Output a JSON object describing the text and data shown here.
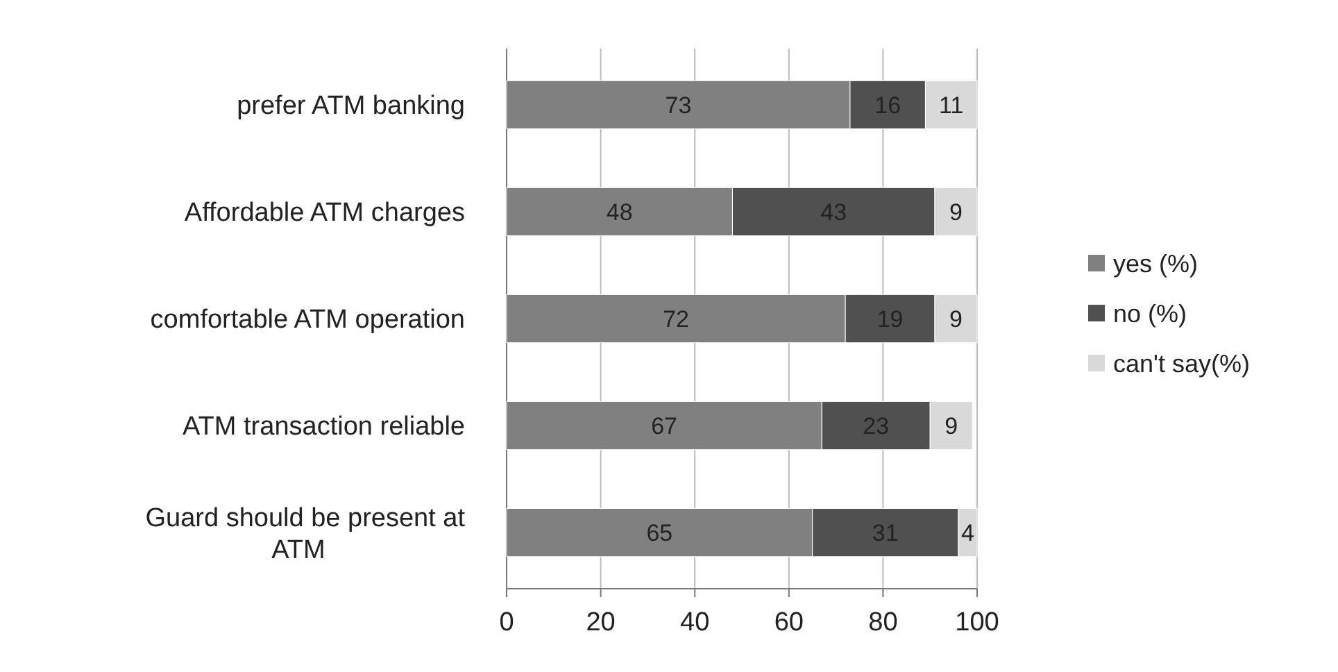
{
  "chart_data": {
    "type": "bar",
    "orientation": "horizontal",
    "stacked": true,
    "categories": [
      "prefer ATM banking",
      "Affordable ATM charges",
      "comfortable ATM operation",
      "ATM transaction reliable",
      "Guard should be present at ATM"
    ],
    "series": [
      {
        "name": "yes (%)",
        "color": "#808080",
        "values": [
          73,
          48,
          72,
          67,
          65
        ]
      },
      {
        "name": "no (%)",
        "color": "#505050",
        "values": [
          16,
          43,
          19,
          23,
          31
        ]
      },
      {
        "name": "can't say(%)",
        "color": "#d9d9d9",
        "values": [
          11,
          9,
          9,
          9,
          4
        ]
      }
    ],
    "xlim": [
      0,
      100
    ],
    "xticks": [
      0,
      20,
      40,
      60,
      80,
      100
    ],
    "grid": "x",
    "legend": "right",
    "data_labels": true
  }
}
